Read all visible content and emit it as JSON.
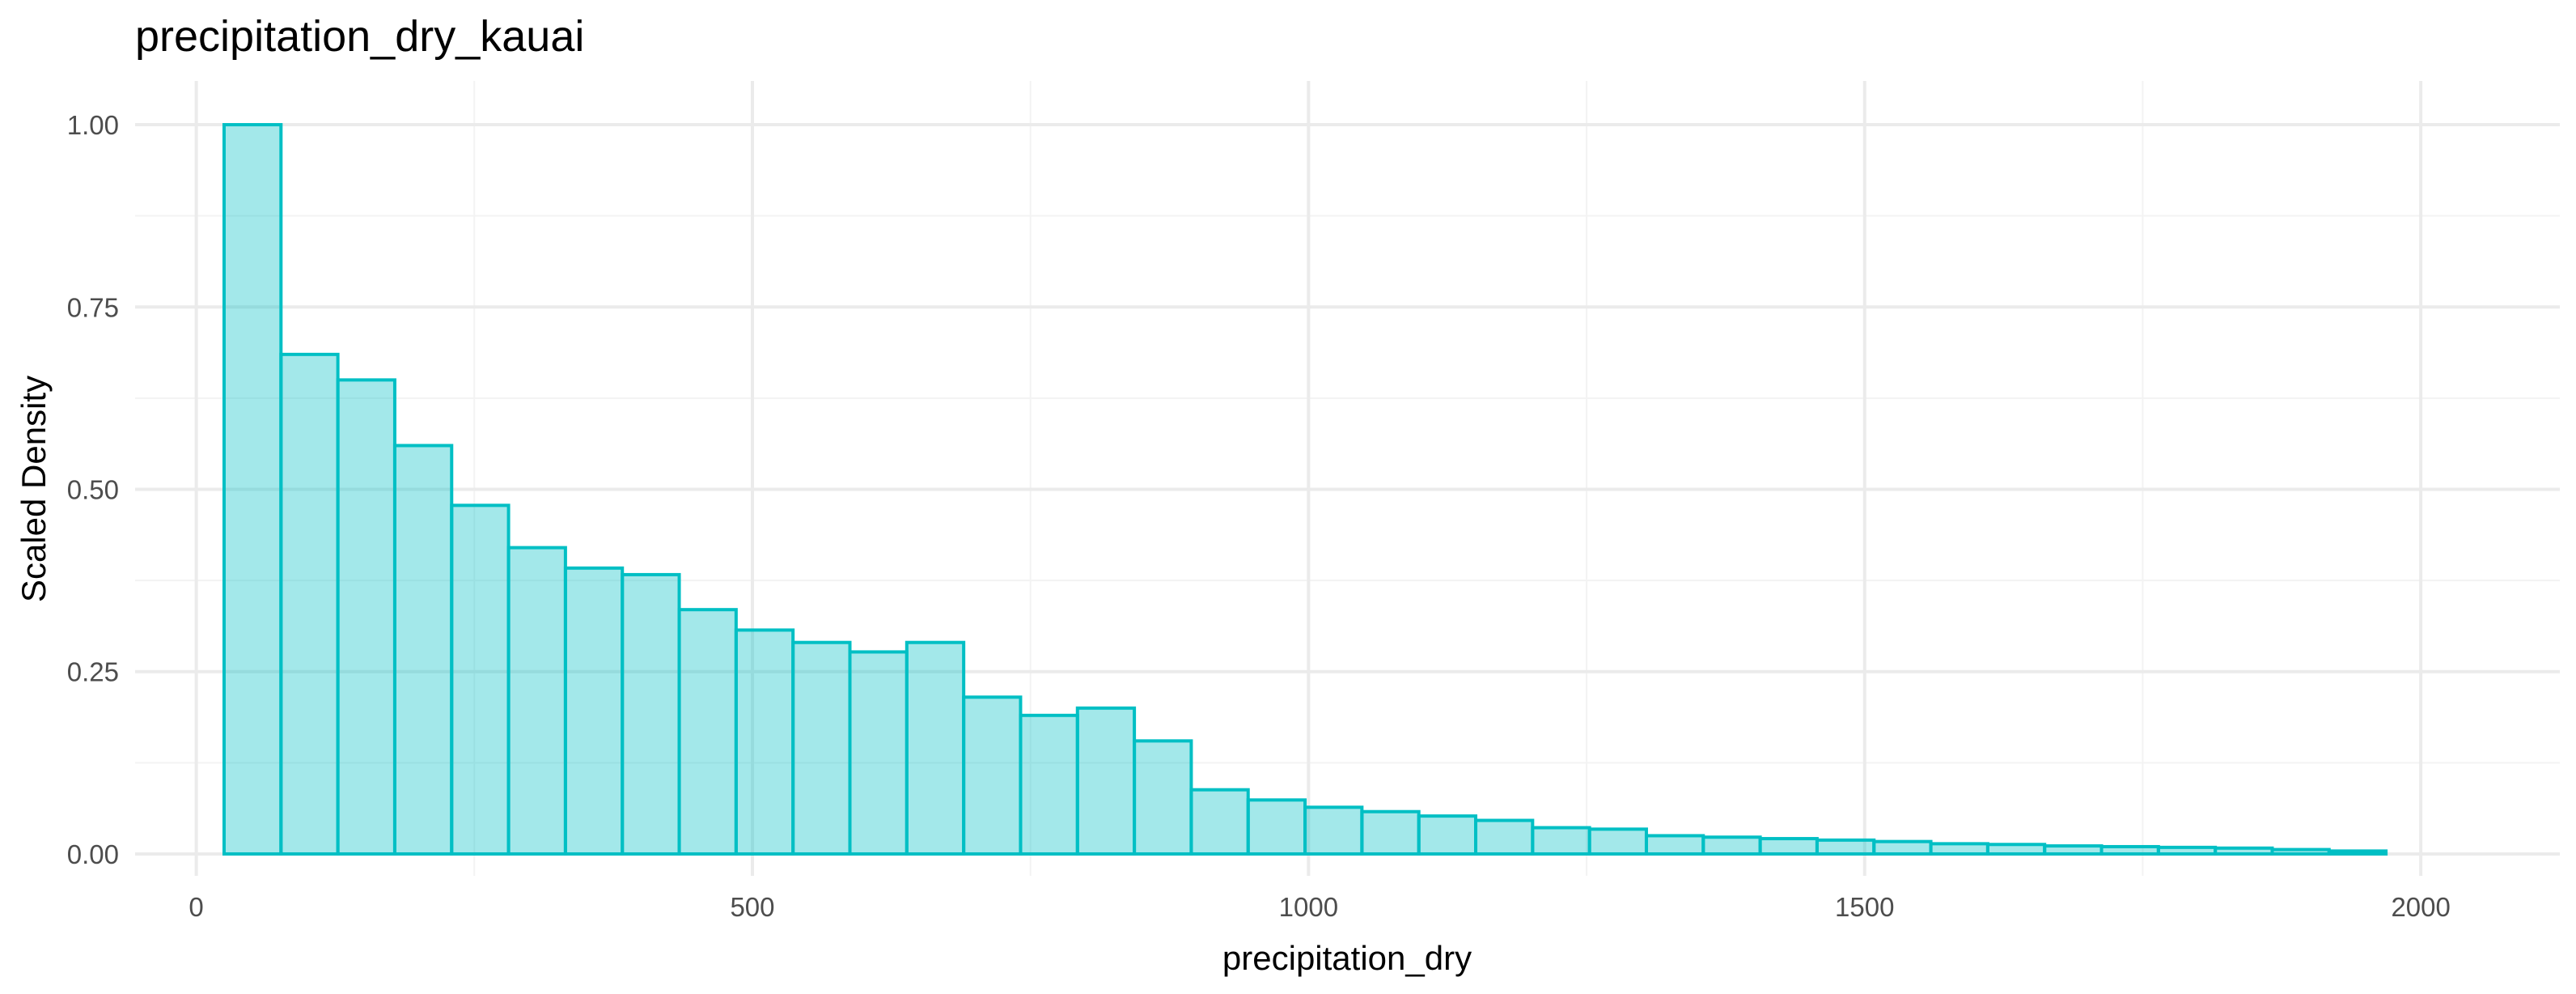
{
  "chart_data": {
    "type": "bar",
    "title": "precipitation_dry_kauai",
    "xlabel": "precipitation_dry",
    "ylabel": "Scaled Density",
    "xlim": [
      -55,
      2125
    ],
    "ylim": [
      -0.03,
      1.06
    ],
    "x_ticks": [
      0,
      500,
      1000,
      1500,
      2000
    ],
    "x_tick_labels": [
      "0",
      "500",
      "1000",
      "1500",
      "2000"
    ],
    "y_ticks": [
      0,
      0.25,
      0.5,
      0.75,
      1.0
    ],
    "y_tick_labels": [
      "0.00",
      "0.25",
      "0.50",
      "0.75",
      "1.00"
    ],
    "grid": true,
    "legend": "none",
    "bin_width": 51.15,
    "bin_start": 25,
    "values": [
      1.0,
      0.685,
      0.65,
      0.56,
      0.478,
      0.42,
      0.392,
      0.383,
      0.335,
      0.307,
      0.29,
      0.277,
      0.29,
      0.215,
      0.19,
      0.2,
      0.155,
      0.088,
      0.074,
      0.064,
      0.058,
      0.052,
      0.046,
      0.036,
      0.034,
      0.025,
      0.023,
      0.021,
      0.019,
      0.017,
      0.014,
      0.013,
      0.011,
      0.01,
      0.009,
      0.008,
      0.006,
      0.004
    ],
    "fill_color": "#00bfc4",
    "fill_opacity": 0.36,
    "stroke_color": "#00bfc4"
  }
}
